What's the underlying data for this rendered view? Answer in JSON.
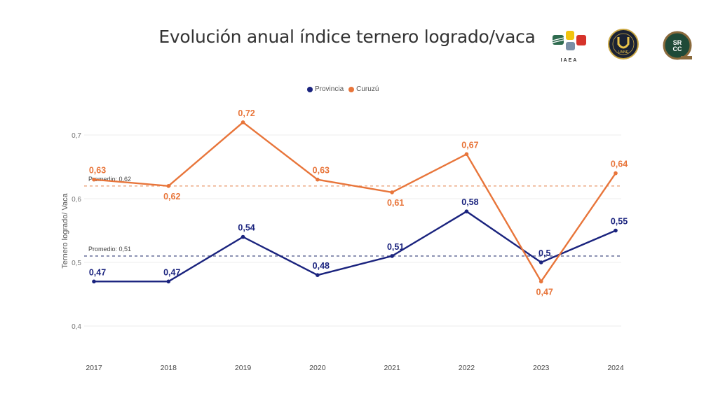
{
  "header": {
    "title": "Evolución anual índice ternero logrado/vaca",
    "logos": [
      {
        "name": "iaea-logo",
        "label": "IAEA"
      },
      {
        "name": "unne-logo",
        "label": "UNNE"
      },
      {
        "name": "srcc-logo",
        "label": "SRCC"
      }
    ]
  },
  "colors": {
    "provincia": "#1a237e",
    "curuzu": "#e8753a",
    "grid": "#eeeeee",
    "axis_text": "#777777"
  },
  "chart_data": {
    "type": "line",
    "title": "Evolución anual índice ternero logrado/vaca",
    "xlabel": "",
    "ylabel": "Ternero logrado/ Vaca",
    "categories": [
      "2017",
      "2018",
      "2019",
      "2020",
      "2021",
      "2022",
      "2023",
      "2024"
    ],
    "ylim": [
      0.4,
      0.7
    ],
    "yticks": [
      0.4,
      0.5,
      0.6,
      0.7
    ],
    "ytick_labels": [
      "0,4",
      "0,5",
      "0,6",
      "0,7"
    ],
    "grid": true,
    "legend_position": "top-center",
    "series": [
      {
        "name": "Provincia",
        "key": "provincia",
        "values": [
          0.47,
          0.47,
          0.54,
          0.48,
          0.51,
          0.58,
          0.5,
          0.55
        ],
        "labels": [
          "0,47",
          "0,47",
          "0,54",
          "0,48",
          "0,51",
          "0,58",
          "0,5",
          "0,55"
        ],
        "average": 0.51,
        "average_label": "Promedio: 0,51"
      },
      {
        "name": "Curuzú",
        "key": "curuzu",
        "values": [
          0.63,
          0.62,
          0.72,
          0.63,
          0.61,
          0.67,
          0.47,
          0.64
        ],
        "labels": [
          "0,63",
          "0,62",
          "0,72",
          "0,63",
          "0,61",
          "0,67",
          "0,47",
          "0,64"
        ],
        "average": 0.62,
        "average_label": "Promedio: 0,62"
      }
    ]
  }
}
